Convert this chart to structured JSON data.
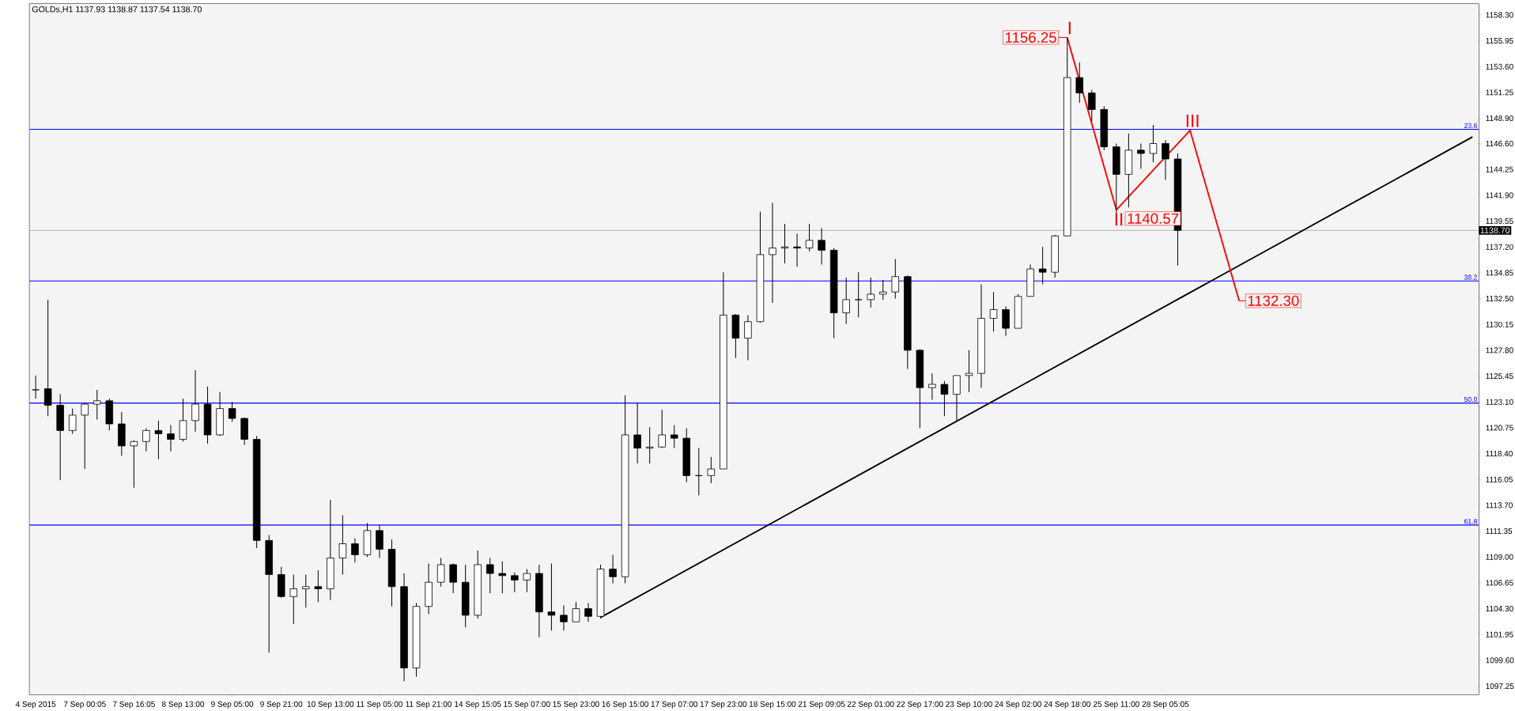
{
  "chart_data": {
    "type": "candlestick",
    "title": "GOLDs,H1  1137.93 1138.87 1137.54 1138.70",
    "categories": [
      "4 Sep 2015",
      null,
      null,
      null,
      "7 Sep 00:05",
      null,
      null,
      null,
      "7 Sep 16:05",
      null,
      null,
      null,
      "8 Sep 13:00",
      null,
      null,
      null,
      "9 Sep 05:00",
      null,
      null,
      null,
      "9 Sep 21:00",
      null,
      null,
      null,
      "10 Sep 13:00",
      null,
      null,
      null,
      "11 Sep 05:00",
      null,
      null,
      null,
      "11 Sep 21:00",
      null,
      null,
      null,
      "14 Sep 15:05",
      null,
      null,
      null,
      "15 Sep 07:00",
      null,
      null,
      null,
      "15 Sep 23:00",
      null,
      null,
      null,
      "16 Sep 15:00",
      null,
      null,
      null,
      "17 Sep 07:00",
      null,
      null,
      null,
      "17 Sep 23:00",
      null,
      null,
      null,
      "18 Sep 15:00",
      null,
      null,
      null,
      "21 Sep 09:05",
      null,
      null,
      null,
      "22 Sep 01:00",
      null,
      null,
      null,
      "22 Sep 17:00",
      null,
      null,
      null,
      "23 Sep 10:00",
      null,
      null,
      null,
      "24 Sep 02:00",
      null,
      null,
      null,
      "24 Sep 18:00",
      null,
      null,
      null,
      "25 Sep 11:00",
      null,
      null,
      null,
      "28 Sep 05:05",
      null,
      null,
      null,
      null,
      null,
      null,
      null,
      null,
      null,
      null,
      null,
      null,
      null,
      null,
      null,
      null,
      null,
      null,
      null,
      null,
      null,
      null,
      null,
      null,
      null
    ],
    "ohlc": [
      [
        1124.2,
        1125.5,
        1123.4,
        1124.2
      ],
      [
        1124.3,
        1132.4,
        1121.8,
        1122.8
      ],
      [
        1122.8,
        1123.8,
        1116.0,
        1120.5
      ],
      [
        1120.5,
        1122.5,
        1120.2,
        1121.9
      ],
      [
        1121.9,
        1123.0,
        1117.0,
        1122.9
      ],
      [
        1122.9,
        1124.2,
        1121.5,
        1123.2
      ],
      [
        1123.2,
        1123.4,
        1120.5,
        1121.1
      ],
      [
        1121.1,
        1122.2,
        1118.2,
        1119.1
      ],
      [
        1119.1,
        1119.6,
        1115.3,
        1119.5
      ],
      [
        1119.5,
        1120.7,
        1118.6,
        1120.5
      ],
      [
        1120.5,
        1121.4,
        1117.9,
        1120.2
      ],
      [
        1120.2,
        1121.0,
        1118.6,
        1119.7
      ],
      [
        1119.7,
        1123.4,
        1119.5,
        1121.4
      ],
      [
        1121.4,
        1126.0,
        1120.4,
        1122.9
      ],
      [
        1122.9,
        1124.5,
        1119.3,
        1120.1
      ],
      [
        1120.1,
        1124.0,
        1120.0,
        1122.5
      ],
      [
        1122.5,
        1123.1,
        1121.3,
        1121.6
      ],
      [
        1121.6,
        1121.7,
        1119.2,
        1119.7
      ],
      [
        1119.7,
        1120.0,
        1109.8,
        1110.5
      ],
      [
        1110.5,
        1111.0,
        1100.3,
        1107.4
      ],
      [
        1107.4,
        1108.1,
        1105.3,
        1105.4
      ],
      [
        1105.4,
        1107.4,
        1102.9,
        1106.1
      ],
      [
        1106.1,
        1107.4,
        1104.4,
        1106.3
      ],
      [
        1106.3,
        1107.8,
        1104.9,
        1106.1
      ],
      [
        1106.1,
        1114.2,
        1105.1,
        1108.9
      ],
      [
        1108.9,
        1112.8,
        1107.4,
        1110.2
      ],
      [
        1110.2,
        1110.7,
        1108.5,
        1109.2
      ],
      [
        1109.2,
        1112.1,
        1109.0,
        1111.4
      ],
      [
        1111.4,
        1111.9,
        1108.9,
        1109.7
      ],
      [
        1109.7,
        1110.6,
        1104.5,
        1106.3
      ],
      [
        1106.3,
        1107.5,
        1097.7,
        1098.9
      ],
      [
        1098.9,
        1104.8,
        1098.1,
        1104.5
      ],
      [
        1104.5,
        1108.4,
        1103.8,
        1106.7
      ],
      [
        1106.7,
        1108.9,
        1106.3,
        1108.3
      ],
      [
        1108.3,
        1108.4,
        1105.7,
        1106.7
      ],
      [
        1106.7,
        1108.3,
        1102.6,
        1103.7
      ],
      [
        1103.7,
        1109.6,
        1103.4,
        1108.3
      ],
      [
        1108.3,
        1108.9,
        1105.7,
        1107.5
      ],
      [
        1107.5,
        1108.6,
        1105.7,
        1107.3
      ],
      [
        1107.3,
        1107.6,
        1105.8,
        1106.9
      ],
      [
        1106.9,
        1107.9,
        1105.8,
        1107.5
      ],
      [
        1107.5,
        1108.3,
        1101.7,
        1104.0
      ],
      [
        1104.0,
        1108.4,
        1102.3,
        1103.7
      ],
      [
        1103.7,
        1104.6,
        1102.3,
        1103.1
      ],
      [
        1103.1,
        1104.9,
        1103.1,
        1104.3
      ],
      [
        1104.3,
        1104.8,
        1103.1,
        1103.6
      ],
      [
        1103.6,
        1108.3,
        1103.4,
        1107.9
      ],
      [
        1107.9,
        1109.2,
        1106.6,
        1107.2
      ],
      [
        1107.2,
        1123.7,
        1106.6,
        1120.1
      ],
      [
        1120.1,
        1123.0,
        1117.5,
        1118.9
      ],
      [
        1118.9,
        1120.8,
        1117.5,
        1119.0
      ],
      [
        1119.0,
        1122.4,
        1118.9,
        1120.1
      ],
      [
        1120.1,
        1121.0,
        1118.9,
        1119.8
      ],
      [
        1119.8,
        1120.7,
        1115.8,
        1116.4
      ],
      [
        1116.4,
        1118.9,
        1114.6,
        1116.4
      ],
      [
        1116.4,
        1118.1,
        1115.7,
        1117.0
      ],
      [
        1117.0,
        1134.9,
        1117.0,
        1131.0
      ],
      [
        1131.0,
        1131.1,
        1127.1,
        1128.9
      ],
      [
        1128.9,
        1131.0,
        1126.9,
        1130.4
      ],
      [
        1130.4,
        1140.4,
        1130.3,
        1136.5
      ],
      [
        1136.5,
        1141.2,
        1132.1,
        1137.1
      ],
      [
        1137.1,
        1139.3,
        1135.7,
        1137.2
      ],
      [
        1137.2,
        1138.4,
        1135.4,
        1137.1
      ],
      [
        1137.1,
        1139.3,
        1136.8,
        1137.8
      ],
      [
        1137.8,
        1138.9,
        1135.6,
        1136.9
      ],
      [
        1136.9,
        1137.1,
        1128.9,
        1131.2
      ],
      [
        1131.2,
        1134.4,
        1130.2,
        1132.4
      ],
      [
        1132.4,
        1134.9,
        1130.8,
        1132.4
      ],
      [
        1132.4,
        1134.4,
        1131.7,
        1132.9
      ],
      [
        1132.9,
        1134.2,
        1132.4,
        1133.1
      ],
      [
        1133.1,
        1136.1,
        1132.5,
        1134.5
      ],
      [
        1134.5,
        1134.6,
        1126.1,
        1127.8
      ],
      [
        1127.8,
        1127.9,
        1120.7,
        1124.4
      ],
      [
        1124.4,
        1125.7,
        1123.3,
        1124.7
      ],
      [
        1124.7,
        1125.0,
        1121.8,
        1123.8
      ],
      [
        1123.8,
        1125.5,
        1121.4,
        1125.5
      ],
      [
        1125.5,
        1127.8,
        1124.0,
        1125.7
      ],
      [
        1125.7,
        1133.8,
        1124.4,
        1130.7
      ],
      [
        1130.7,
        1133.1,
        1129.5,
        1131.5
      ],
      [
        1131.5,
        1131.8,
        1129.1,
        1129.8
      ],
      [
        1129.8,
        1132.9,
        1129.8,
        1132.7
      ],
      [
        1132.7,
        1135.6,
        1132.7,
        1135.2
      ],
      [
        1135.2,
        1137.2,
        1133.8,
        1134.9
      ],
      [
        1134.9,
        1138.3,
        1134.4,
        1138.2
      ],
      [
        1138.2,
        1156.25,
        1138.2,
        1152.6
      ],
      [
        1152.6,
        1154.0,
        1150.3,
        1151.2
      ],
      [
        1151.2,
        1151.5,
        1148.6,
        1149.7
      ],
      [
        1149.7,
        1150.0,
        1146.0,
        1146.3
      ],
      [
        1146.3,
        1146.6,
        1140.2,
        1143.8
      ],
      [
        1143.8,
        1147.5,
        1140.8,
        1146.0
      ],
      [
        1146.0,
        1146.6,
        1144.3,
        1145.7
      ],
      [
        1145.7,
        1148.3,
        1144.9,
        1146.6
      ],
      [
        1146.6,
        1146.9,
        1143.3,
        1145.2
      ],
      [
        1145.2,
        1145.7,
        1135.5,
        1138.7
      ],
      null,
      null,
      null,
      null,
      null,
      null,
      null,
      null,
      null,
      null,
      null,
      null,
      null,
      null,
      null,
      null,
      null,
      null,
      null,
      null,
      null,
      null,
      null,
      null
    ],
    "series": [
      {
        "type": "line",
        "color": "#000000",
        "values": [
          null,
          null,
          null,
          null,
          null,
          null,
          null,
          null,
          null,
          null,
          null,
          null,
          null,
          null,
          null,
          null,
          null,
          null,
          null,
          null,
          null,
          null,
          null,
          null,
          null,
          null,
          null,
          null,
          null,
          null,
          null,
          null,
          null,
          null,
          null,
          null,
          null,
          null,
          null,
          null,
          null,
          null,
          null,
          null,
          null,
          null,
          1103.5,
          null,
          null,
          null,
          null,
          null,
          null,
          null,
          null,
          null,
          null,
          null,
          null,
          null,
          null,
          null,
          null,
          null,
          null,
          null,
          null,
          null,
          null,
          null,
          null,
          null,
          null,
          null,
          null,
          null,
          null,
          null,
          null,
          null,
          null,
          null,
          null,
          null,
          null,
          null,
          null,
          null,
          null,
          null,
          null,
          null,
          null,
          null,
          null,
          null,
          null,
          null,
          null,
          null,
          null,
          null,
          null,
          null,
          null,
          null,
          null,
          null,
          null,
          null,
          null,
          null,
          null,
          null,
          null,
          null,
          null,
          1147.2
        ]
      },
      {
        "type": "line",
        "color": "#ff0000",
        "value_labels": [
          null,
          null,
          null,
          null,
          null,
          null,
          null,
          null,
          null,
          null,
          null,
          null,
          null,
          null,
          null,
          null,
          null,
          null,
          null,
          null,
          null,
          null,
          null,
          null,
          null,
          null,
          null,
          null,
          null,
          null,
          null,
          null,
          null,
          null,
          null,
          null,
          null,
          null,
          null,
          null,
          null,
          null,
          null,
          null,
          null,
          null,
          null,
          null,
          null,
          null,
          null,
          null,
          null,
          null,
          null,
          null,
          null,
          null,
          null,
          null,
          null,
          null,
          null,
          null,
          null,
          null,
          null,
          null,
          null,
          null,
          null,
          null,
          null,
          null,
          null,
          null,
          null,
          null,
          null,
          null,
          null,
          null,
          null,
          null,
          "1156.25",
          null,
          null,
          null,
          "1140.57",
          null,
          null,
          null,
          null,
          null,
          null,
          null,
          null,
          null,
          "1132.30",
          null,
          null,
          null,
          null,
          null,
          null,
          null,
          null,
          null,
          null,
          null,
          null,
          null,
          null,
          null,
          null,
          null,
          null,
          null
        ],
        "values": [
          null,
          null,
          null,
          null,
          null,
          null,
          null,
          null,
          null,
          null,
          null,
          null,
          null,
          null,
          null,
          null,
          null,
          null,
          null,
          null,
          null,
          null,
          null,
          null,
          null,
          null,
          null,
          null,
          null,
          null,
          null,
          null,
          null,
          null,
          null,
          null,
          null,
          null,
          null,
          null,
          null,
          null,
          null,
          null,
          null,
          null,
          null,
          null,
          null,
          null,
          null,
          null,
          null,
          null,
          null,
          null,
          null,
          null,
          null,
          null,
          null,
          null,
          null,
          null,
          null,
          null,
          null,
          null,
          null,
          null,
          null,
          null,
          null,
          null,
          null,
          null,
          null,
          null,
          null,
          null,
          null,
          null,
          null,
          null,
          1156.25,
          null,
          null,
          null,
          1140.57,
          null,
          null,
          null,
          null,
          null,
          1147.8,
          null,
          null,
          null,
          1132.3,
          null,
          null,
          null,
          null,
          null,
          null,
          null,
          null,
          null,
          null,
          null,
          null,
          null,
          null,
          null,
          null,
          null,
          null,
          null
        ]
      }
    ],
    "ref_lines": [
      {
        "axis": "y",
        "value": 1147.9,
        "color": "#0000ff"
      },
      {
        "axis": "y",
        "value": 1134.1,
        "color": "#0000ff"
      },
      {
        "axis": "y",
        "value": 1123.0,
        "color": "#0000ff"
      },
      {
        "axis": "y",
        "value": 1111.9,
        "color": "#0000ff"
      },
      {
        "axis": "y",
        "value": 1138.7,
        "label": "1138.70",
        "color": "#c0c0c0"
      }
    ],
    "annotations": [
      "I",
      "II",
      "III",
      {
        "text": "23.6",
        "y": 1147.9
      },
      {
        "text": "38.2",
        "y": 1134.1
      },
      {
        "text": "50.0",
        "y": 1123.0
      },
      {
        "text": "61.8",
        "y": 1111.9
      }
    ],
    "ylim": [
      1096.5,
      1159.3
    ],
    "yticks": [
      {
        "value": 1158.3,
        "label": "1158.30"
      },
      {
        "value": 1155.95,
        "label": "1155.95"
      },
      {
        "value": 1153.6,
        "label": "1153.60"
      },
      {
        "value": 1151.25,
        "label": "1151.25"
      },
      {
        "value": 1148.9,
        "label": "1148.90"
      },
      {
        "value": 1146.6,
        "label": "1146.60"
      },
      {
        "value": 1144.25,
        "label": "1144.25"
      },
      {
        "value": 1141.9,
        "label": "1141.90"
      },
      {
        "value": 1139.55,
        "label": "1139.55"
      },
      {
        "value": 1137.2,
        "label": "1137.20"
      },
      {
        "value": 1134.85,
        "label": "1134.85"
      },
      {
        "value": 1132.5,
        "label": "1132.50"
      },
      {
        "value": 1130.15,
        "label": "1130.15"
      },
      {
        "value": 1127.8,
        "label": "1127.80"
      },
      {
        "value": 1125.45,
        "label": "1125.45"
      },
      {
        "value": 1123.1,
        "label": "1123.10"
      },
      {
        "value": 1120.75,
        "label": "1120.75"
      },
      {
        "value": 1118.4,
        "label": "1118.40"
      },
      {
        "value": 1116.05,
        "label": "1116.05"
      },
      {
        "value": 1113.7,
        "label": "1113.70"
      },
      {
        "value": 1111.35,
        "label": "1111.35"
      },
      {
        "value": 1109.0,
        "label": "1109.00"
      },
      {
        "value": 1106.65,
        "label": "1106.65"
      },
      {
        "value": 1104.3,
        "label": "1104.30"
      },
      {
        "value": 1101.95,
        "label": "1101.95"
      },
      {
        "value": 1099.6,
        "label": "1099.60"
      },
      {
        "value": 1097.25,
        "label": "1097.25"
      }
    ]
  }
}
